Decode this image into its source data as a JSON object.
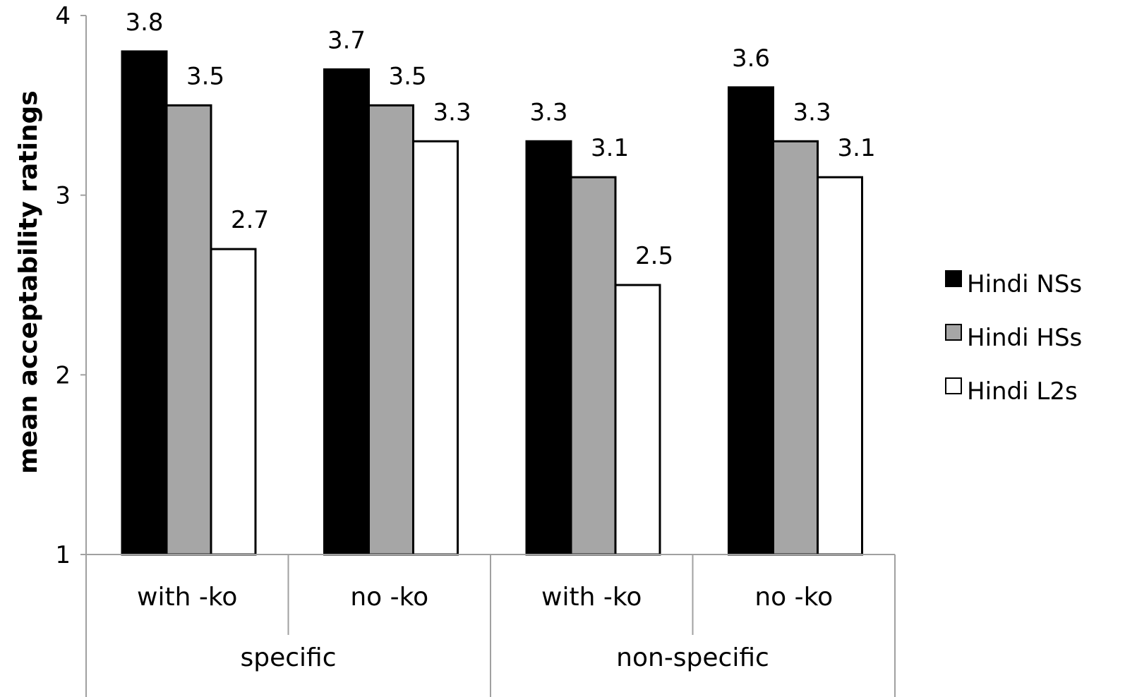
{
  "chart_data": {
    "type": "bar",
    "ylabel": "mean acceptability ratings",
    "xlabel": "",
    "ylim": [
      1,
      4
    ],
    "yticks": [
      1,
      2,
      3,
      4
    ],
    "grid": false,
    "legend_position": "right",
    "groups": [
      {
        "label": "specific",
        "categories": [
          "with -ko",
          "no -ko"
        ]
      },
      {
        "label": "non-specific",
        "categories": [
          "with -ko",
          "no -ko"
        ]
      }
    ],
    "categories": [
      "with -ko",
      "no -ko",
      "with -ko",
      "no -ko"
    ],
    "series": [
      {
        "name": "Hindi NSs",
        "color": "#000000",
        "values": [
          3.8,
          3.7,
          3.3,
          3.6
        ],
        "labels": [
          "3.8",
          "3.7",
          "3.3",
          "3.6"
        ]
      },
      {
        "name": "Hindi HSs",
        "color": "#a6a6a6",
        "values": [
          3.5,
          3.5,
          3.1,
          3.3
        ],
        "labels": [
          "3.5",
          "3.5",
          "3.1",
          "3.3"
        ]
      },
      {
        "name": "Hindi L2s",
        "color": "#ffffff",
        "values": [
          2.7,
          3.3,
          2.5,
          3.1
        ],
        "labels": [
          "2.7",
          "3.3",
          "2.5",
          "3.1"
        ]
      }
    ]
  }
}
